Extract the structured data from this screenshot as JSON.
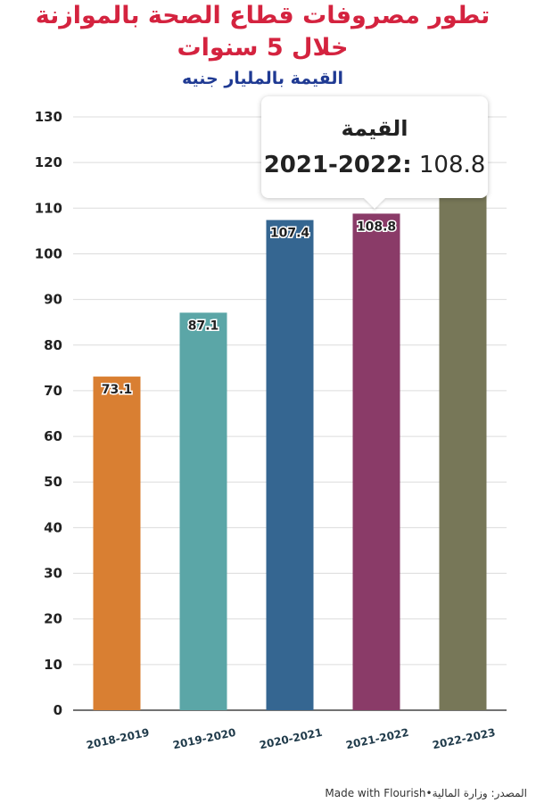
{
  "header": {
    "title_line1": "تطور مصروفات قطاع الصحة بالموازنة",
    "title_line2": "خلال 5 سنوات",
    "subtitle": "القيمة بالمليار جنيه"
  },
  "tooltip": {
    "title": "القيمة",
    "category": "2021-2022:",
    "value": "108.8"
  },
  "footer": {
    "made_with": "Made with Flourish",
    "separator": " • ",
    "source": "المصدر: وزارة المالية"
  },
  "chart_data": {
    "type": "bar",
    "categories": [
      "2018-2019",
      "2019-2020",
      "2020-2021",
      "2021-2022",
      "2022-2023"
    ],
    "values": [
      73.1,
      87.1,
      107.4,
      108.8,
      128.1
    ],
    "data_labels": [
      "73.1",
      "87.1",
      "107.4",
      "108.8",
      ""
    ],
    "colors": [
      "#d97f32",
      "#5ba6a7",
      "#356691",
      "#8a3b68",
      "#777758"
    ],
    "ylim": [
      0,
      130
    ],
    "yticks": [
      0,
      10,
      20,
      30,
      40,
      50,
      60,
      70,
      80,
      90,
      100,
      110,
      120,
      130
    ],
    "grid": true,
    "legend": "none"
  }
}
